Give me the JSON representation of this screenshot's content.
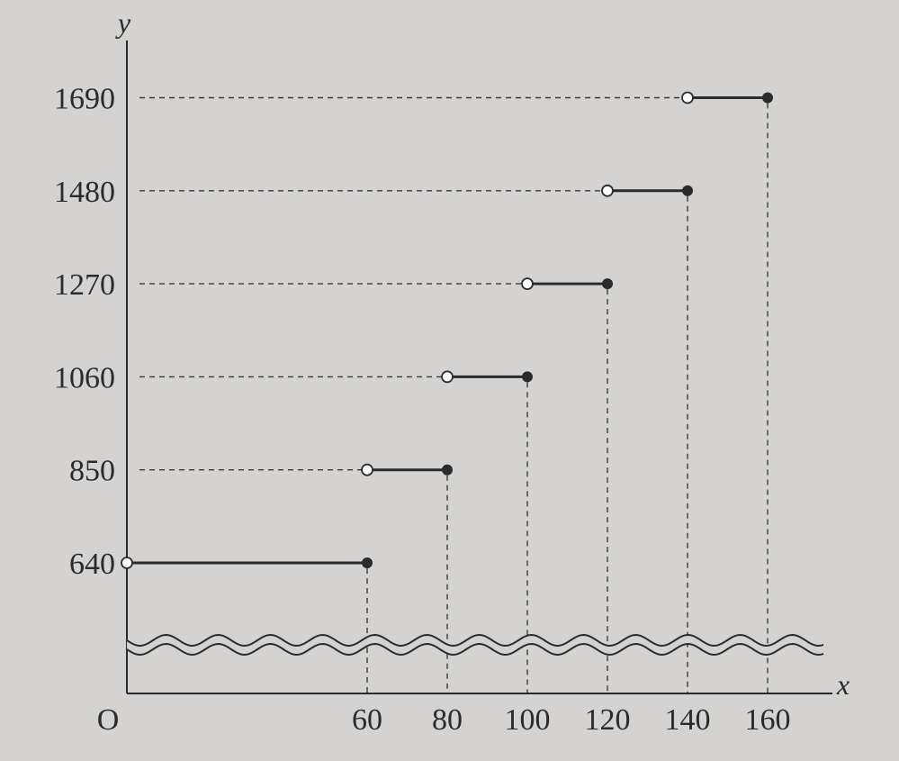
{
  "chart_data": {
    "type": "line",
    "subtype": "step",
    "xlabel": "x",
    "ylabel": "y",
    "origin_label": "O",
    "x_ticks": [
      "60",
      "80",
      "100",
      "120",
      "140",
      "160"
    ],
    "y_ticks": [
      "640",
      "850",
      "1060",
      "1270",
      "1480",
      "1690"
    ],
    "y_axis_break": true,
    "xlim": [
      0,
      170
    ],
    "grid": false,
    "segments": [
      {
        "x_start": 0,
        "x_end": 60,
        "y": 640,
        "start": "open",
        "end": "closed"
      },
      {
        "x_start": 60,
        "x_end": 80,
        "y": 850,
        "start": "open",
        "end": "closed"
      },
      {
        "x_start": 80,
        "x_end": 100,
        "y": 1060,
        "start": "open",
        "end": "closed"
      },
      {
        "x_start": 100,
        "x_end": 120,
        "y": 1270,
        "start": "open",
        "end": "closed"
      },
      {
        "x_start": 120,
        "x_end": 140,
        "y": 1480,
        "start": "open",
        "end": "closed"
      },
      {
        "x_start": 140,
        "x_end": 160,
        "y": 1690,
        "start": "open",
        "end": "closed"
      }
    ]
  }
}
